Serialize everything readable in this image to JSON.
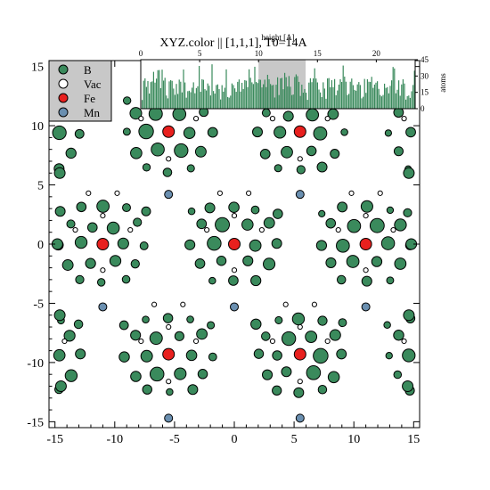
{
  "chart_data": {
    "type": "scatter",
    "title": "XYZ.color || [1,1,1], T0=14A",
    "xlim": [
      -15.5,
      15.5
    ],
    "ylim": [
      -15.5,
      15.5
    ],
    "x_ticks": [
      -15,
      -10,
      -5,
      0,
      5,
      10,
      15
    ],
    "y_ticks": [
      -15,
      -10,
      -5,
      0,
      5,
      10,
      15
    ],
    "legend": {
      "position": "top-left",
      "entries": [
        {
          "label": "B",
          "color": "#3a8a5c"
        },
        {
          "label": "Vac",
          "color": "#ffffff"
        },
        {
          "label": "Fe",
          "color": "#e8201e"
        },
        {
          "label": "Mn",
          "color": "#6a8fb0"
        }
      ]
    },
    "series": [
      {
        "name": "Fe",
        "color": "#e8201e",
        "points": [
          [
            -5.5,
            9.5
          ],
          [
            5.5,
            9.5
          ],
          [
            -11,
            0
          ],
          [
            0,
            0
          ],
          [
            11,
            0
          ],
          [
            -5.5,
            -9.3
          ],
          [
            5.5,
            -9.3
          ]
        ]
      },
      {
        "name": "Mn",
        "color": "#6a8fb0",
        "points": [
          [
            -5.5,
            4.2
          ],
          [
            5.5,
            4.2
          ],
          [
            -11,
            -5.3
          ],
          [
            0,
            -5.3
          ],
          [
            11,
            -5.3
          ],
          [
            -5.5,
            -14.7
          ],
          [
            5.5,
            -14.7
          ]
        ]
      }
    ],
    "inset_histogram": {
      "xlabel": "height [A]",
      "ylabel": "atoms",
      "x_ticks": [
        0,
        5,
        10,
        15,
        20
      ],
      "y_ticks": [
        0,
        15,
        30,
        45
      ],
      "xlim": [
        0,
        23.3
      ],
      "ylim": [
        0,
        45
      ],
      "highlight_range": [
        10,
        14
      ]
    }
  }
}
